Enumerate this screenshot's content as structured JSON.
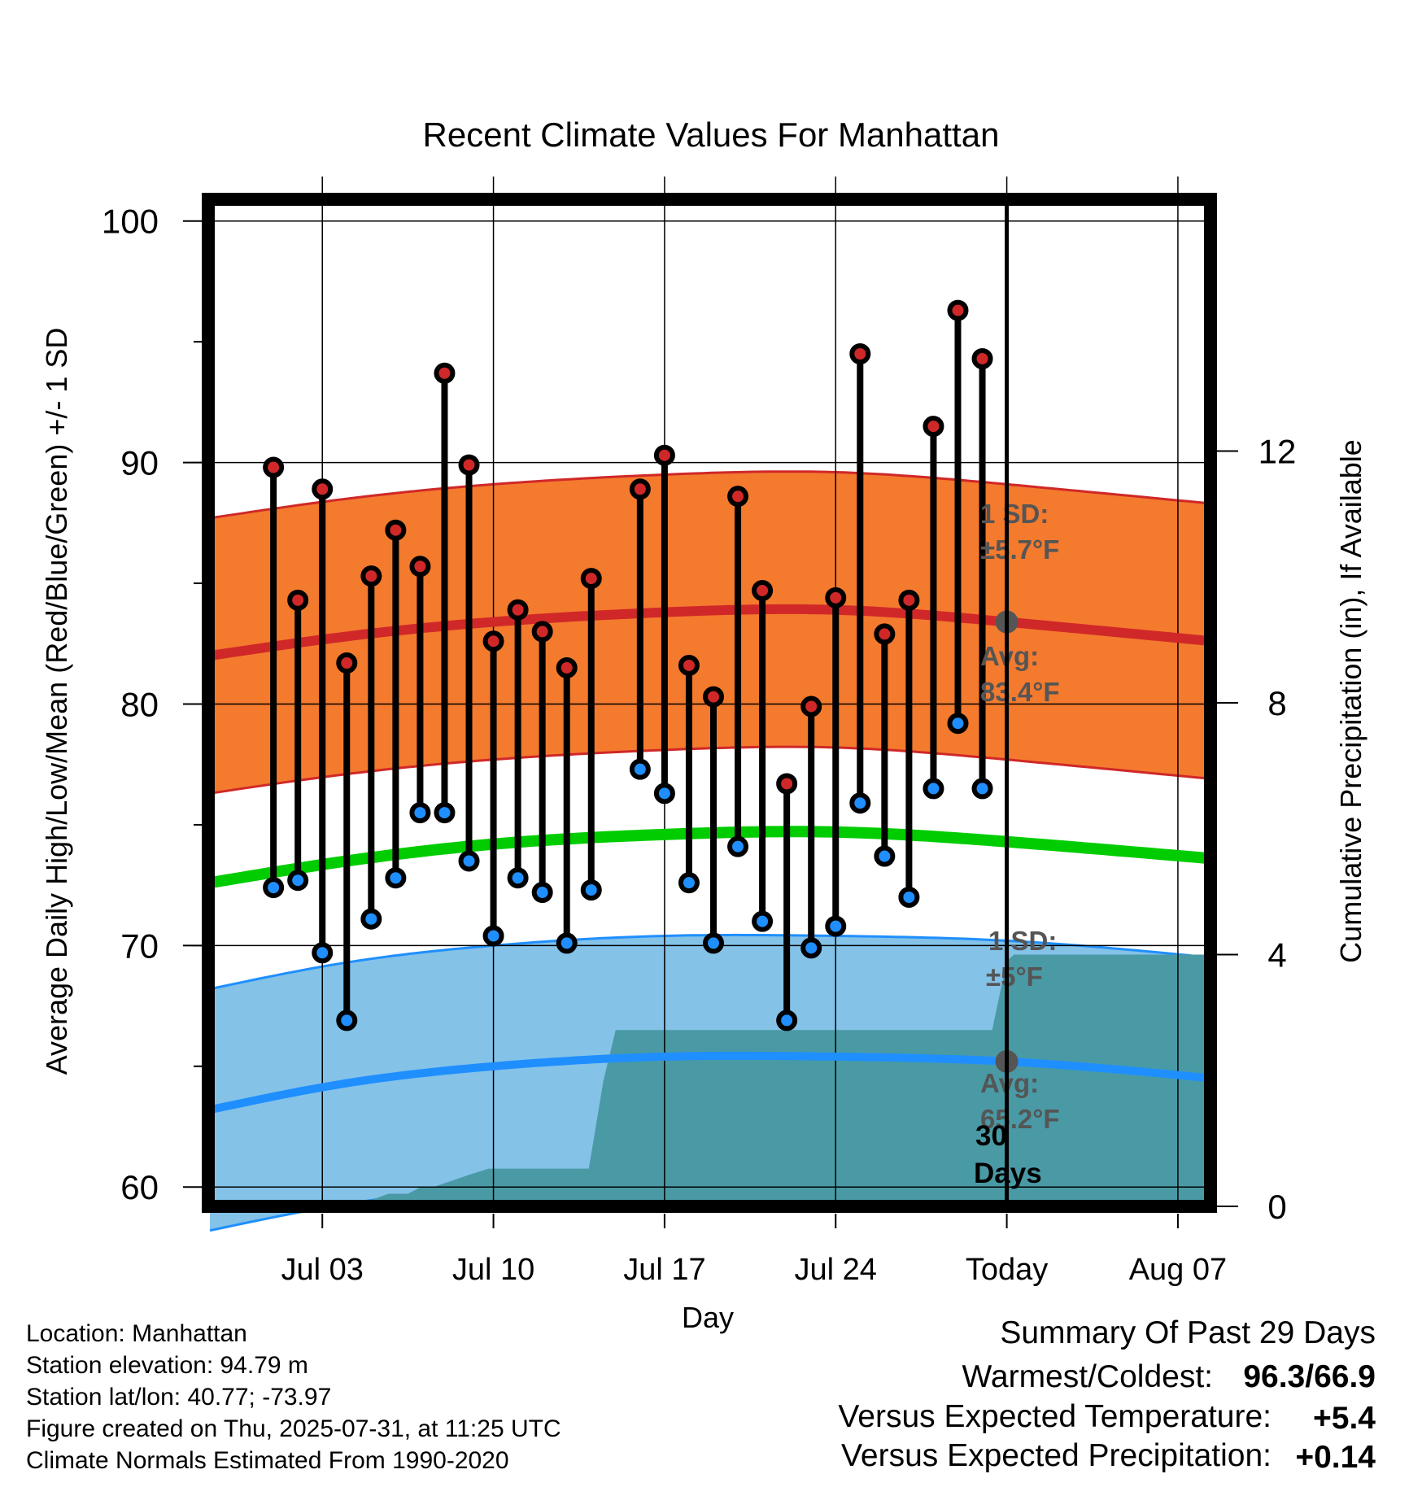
{
  "chart_data": {
    "type": "line",
    "title": "Recent Climate Values For Manhattan",
    "xlabel": "Day",
    "ylabel": "Average Daily High/Low/Mean (Red/Blue/Green) +/- 1 SD",
    "y2label": "Cumulative Precipitation (in), If Available",
    "ylim": [
      59.2,
      100.9
    ],
    "y2lim": [
      0,
      16
    ],
    "xlim": [
      -2.6,
      38.4
    ],
    "yticks": [
      "60",
      "70",
      "80",
      "90",
      "100"
    ],
    "y2ticks": [
      "0",
      "4",
      "8",
      "12"
    ],
    "xticks": [
      {
        "day": 2,
        "label": "Jul 03"
      },
      {
        "day": 9,
        "label": "Jul 10"
      },
      {
        "day": 16,
        "label": "Jul 17"
      },
      {
        "day": 23,
        "label": "Jul 24"
      },
      {
        "day": 30,
        "label": "Today"
      },
      {
        "day": 37,
        "label": "Aug 07"
      }
    ],
    "grid": true,
    "today_day": 30,
    "days": [
      0,
      1,
      2,
      3,
      4,
      5,
      6,
      7,
      8,
      9,
      10,
      11,
      12,
      13,
      16,
      17,
      18,
      19,
      20,
      21,
      22,
      23,
      24,
      25,
      26,
      27,
      28,
      29,
      30,
      31,
      32,
      33,
      34,
      35,
      36,
      37,
      38
    ],
    "normals_days": [
      -2.6,
      3,
      9,
      16,
      23,
      30,
      38.4
    ],
    "high_observed_days": [
      0,
      1,
      2,
      3,
      4,
      5,
      6,
      7,
      8,
      9,
      10,
      11,
      12,
      13,
      15,
      16,
      17,
      18,
      19,
      20,
      21,
      22,
      23,
      24,
      25,
      26,
      27,
      28,
      29
    ],
    "series": [
      {
        "name": "High",
        "role": "high_observed",
        "color": "#d02828",
        "values": [
          89.8,
          84.3,
          88.9,
          81.7,
          85.3,
          87.2,
          85.7,
          93.7,
          89.9,
          82.6,
          83.9,
          83.0,
          81.5,
          85.2,
          88.9,
          90.3,
          81.6,
          80.3,
          88.6,
          84.7,
          76.7,
          79.9,
          84.4,
          94.5,
          82.9,
          84.3,
          91.5,
          96.3,
          94.3
        ]
      },
      {
        "name": "Low",
        "role": "low_observed",
        "color": "#1f8fff",
        "values": [
          72.4,
          72.7,
          69.7,
          66.9,
          71.1,
          72.8,
          75.5,
          75.5,
          73.5,
          70.4,
          72.8,
          72.2,
          70.1,
          72.3,
          77.3,
          76.3,
          72.6,
          70.1,
          74.1,
          71.0,
          66.9,
          69.9,
          70.8,
          75.9,
          73.7,
          72.0,
          76.5,
          79.2,
          76.5
        ]
      }
    ],
    "normals": {
      "high_mean": [
        82.0,
        82.8,
        83.4,
        83.8,
        83.9,
        83.4,
        82.6
      ],
      "high_sd": 5.7,
      "low_mean": [
        63.2,
        64.3,
        65.0,
        65.4,
        65.4,
        65.2,
        64.5
      ],
      "low_sd": 5,
      "mean": [
        72.6,
        73.5,
        74.2,
        74.6,
        74.7,
        74.3,
        73.6
      ]
    },
    "precipitation": {
      "days": [
        -2.6,
        -1.4,
        -0.6,
        4,
        4.7,
        5.5,
        6,
        6.5,
        8,
        8.8,
        11,
        12,
        12.9,
        13.5,
        14,
        20,
        25,
        28,
        29.4,
        30,
        30.3,
        38.4
      ],
      "values": [
        0.0,
        0.1,
        0.1,
        0.1,
        0.2,
        0.2,
        0.3,
        0.3,
        0.5,
        0.6,
        0.6,
        0.6,
        0.6,
        2.0,
        2.8,
        2.8,
        2.8,
        2.8,
        2.8,
        3.9,
        4.0,
        4.0
      ],
      "color": "#4a9aa5"
    },
    "annotations": {
      "high_sd_label": [
        "1 SD:",
        "±5.7°F"
      ],
      "high_avg_label": [
        "Avg:",
        "83.4°F"
      ],
      "low_sd_label": [
        "1 SD:",
        "±5°F"
      ],
      "low_avg_label": [
        "Avg:",
        "65.2°F"
      ],
      "precip_label": [
        "30",
        "Days"
      ]
    }
  },
  "footer": {
    "lines": [
      "Location: Manhattan",
      "Station elevation: 94.79 m",
      "Station lat/lon: 40.77; -73.97",
      "Figure created on Thu, 2025-07-31, at 11:25 UTC",
      "Climate Normals Estimated From 1990-2020"
    ]
  },
  "summary": {
    "title": "Summary Of Past 29 Days",
    "warm_cold_label": "Warmest/Coldest:",
    "warm_value": "96.3",
    "slash": "/",
    "cold_value": "66.9",
    "temp_label": "Versus Expected Temperature:",
    "temp_value": "+5.4",
    "temp_color": "#d02828",
    "precip_label": "Versus Expected Precipitation:",
    "precip_value": "+0.14",
    "precip_color": "#18c018"
  },
  "colors": {
    "high_band": "#f47a2e",
    "high_line": "#d02828",
    "low_band": "#84c2e8",
    "low_line": "#1f8fff",
    "mean_line": "#00cc00",
    "annotation": "#555555"
  }
}
